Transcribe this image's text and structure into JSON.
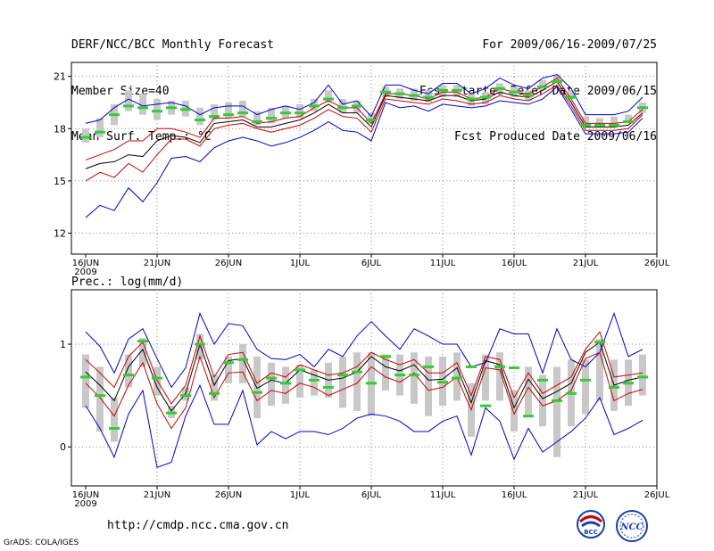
{
  "header": {
    "title": "DERF/NCC/BCC Monthly Forecast",
    "member_size": "Member Size=40",
    "variable": "Mean Surf. Temp.: °C",
    "forecast_range": "For 2009/06/16-2009/07/25",
    "started_date": "Fcst Started Refer Date 2009/06/15",
    "produced_date": "Fcst Produced Date 2009/06/16"
  },
  "footer": {
    "url": "http://cmdp.ncc.cma.gov.cn",
    "grads_credit": "GrADS: COLA/IGES",
    "logo_bcc_text": "BCC",
    "logo_ncc_text": "NCC"
  },
  "colors": {
    "ensemble_mean": "#000000",
    "spread": "#cc0000",
    "extremes": "#0000cc",
    "observed_box": "#c8c8c8",
    "marker": "#33cc33"
  },
  "chart_data": [
    {
      "type": "line",
      "title": "Mean Surf. Temp.: °C",
      "x_tick_labels": [
        "16JUN",
        "21JUN",
        "26JUN",
        "1JUL",
        "6JUL",
        "11JUL",
        "16JUL",
        "21JUL",
        "26JUL"
      ],
      "x_year_label": "2009",
      "ylim": [
        10.8,
        21.8
      ],
      "y_ticks": [
        12,
        15,
        18,
        21
      ],
      "grid": true,
      "days": 40,
      "series": [
        {
          "name": "max",
          "values": [
            12.9,
            13.6,
            13.3,
            14.6,
            13.8,
            14.9,
            16.3,
            16.4,
            16.1,
            16.9,
            17.3,
            17.5,
            17.3,
            17.0,
            17.2,
            17.5,
            17.9,
            18.4,
            17.9,
            17.8,
            17.3,
            19.5,
            19.2,
            19.3,
            19.0,
            19.4,
            19.3,
            19.2,
            19.3,
            19.6,
            19.5,
            19.4,
            19.7,
            20.4,
            19.1,
            17.7,
            17.7,
            17.7,
            17.8,
            18.6
          ]
        },
        {
          "name": "upper",
          "values": [
            15.0,
            15.5,
            15.2,
            16.0,
            15.5,
            16.5,
            17.4,
            17.4,
            17.0,
            18.0,
            18.2,
            18.3,
            18.0,
            17.8,
            18.0,
            18.2,
            18.6,
            19.1,
            18.7,
            18.6,
            17.8,
            19.7,
            19.6,
            19.5,
            19.4,
            19.7,
            19.6,
            19.4,
            19.5,
            19.9,
            19.7,
            19.6,
            20.0,
            20.5,
            19.3,
            17.9,
            17.9,
            17.9,
            18.0,
            18.8
          ]
        },
        {
          "name": "mean",
          "values": [
            15.7,
            16.0,
            16.1,
            16.5,
            16.4,
            17.3,
            17.6,
            17.5,
            17.2,
            18.3,
            18.4,
            18.5,
            18.1,
            18.1,
            18.3,
            18.5,
            18.9,
            19.4,
            18.9,
            18.9,
            18.1,
            19.9,
            19.8,
            19.7,
            19.6,
            19.9,
            19.9,
            19.6,
            19.7,
            20.1,
            19.9,
            19.8,
            20.2,
            20.7,
            19.5,
            18.1,
            18.1,
            18.1,
            18.2,
            18.9
          ]
        },
        {
          "name": "lower",
          "values": [
            16.2,
            16.5,
            16.8,
            17.3,
            17.3,
            18.0,
            18.0,
            17.8,
            17.5,
            18.6,
            18.6,
            18.7,
            18.3,
            18.4,
            18.6,
            18.7,
            19.2,
            19.6,
            19.2,
            19.2,
            18.3,
            20.0,
            20.0,
            19.9,
            19.7,
            20.1,
            20.1,
            19.7,
            19.8,
            20.3,
            20.1,
            20.0,
            20.4,
            20.9,
            19.7,
            18.3,
            18.3,
            18.3,
            18.4,
            19.1
          ]
        },
        {
          "name": "min",
          "values": [
            18.3,
            18.5,
            19.2,
            19.7,
            19.3,
            19.4,
            19.5,
            19.3,
            18.8,
            19.2,
            19.3,
            19.3,
            18.8,
            19.1,
            19.3,
            19.1,
            19.5,
            20.5,
            19.4,
            19.6,
            18.7,
            20.5,
            20.5,
            20.2,
            20.0,
            20.6,
            20.6,
            20.0,
            20.3,
            20.9,
            20.5,
            20.3,
            20.9,
            21.1,
            20.3,
            18.8,
            18.8,
            18.8,
            19.0,
            19.8
          ]
        },
        {
          "name": "observed_box_low",
          "values": [
            17.2,
            17.5,
            18.2,
            19.0,
            18.8,
            18.5,
            18.8,
            18.7,
            18.2,
            18.5,
            18.6,
            18.7,
            18.2,
            18.3,
            18.6,
            18.6,
            19.0,
            19.5,
            18.9,
            18.9,
            18.3,
            19.8,
            19.7,
            19.6,
            19.5,
            19.8,
            19.8,
            19.3,
            19.4,
            20.0,
            19.8,
            19.6,
            20.2,
            20.6,
            19.7,
            18.3,
            18.2,
            18.2,
            18.3,
            18.9
          ]
        },
        {
          "name": "observed_box_high",
          "values": [
            18.0,
            18.6,
            19.4,
            20.2,
            20.0,
            19.7,
            19.6,
            19.6,
            19.2,
            19.4,
            19.5,
            19.6,
            19.0,
            19.2,
            19.3,
            19.4,
            19.7,
            20.2,
            19.7,
            19.6,
            18.9,
            20.4,
            20.3,
            20.3,
            20.2,
            20.5,
            20.5,
            20.0,
            20.1,
            20.6,
            20.4,
            20.2,
            20.8,
            21.1,
            20.2,
            18.7,
            18.6,
            18.7,
            18.8,
            19.5
          ]
        },
        {
          "name": "marker",
          "values": [
            17.5,
            17.8,
            18.8,
            19.3,
            19.2,
            19.0,
            19.2,
            19.1,
            18.5,
            18.7,
            18.8,
            18.9,
            18.4,
            18.6,
            18.9,
            18.9,
            19.3,
            19.7,
            19.2,
            19.3,
            18.5,
            20.1,
            20.0,
            19.9,
            19.8,
            20.2,
            20.2,
            19.7,
            19.8,
            20.3,
            20.1,
            19.9,
            20.4,
            20.7,
            19.8,
            18.2,
            18.2,
            18.2,
            18.4,
            19.2
          ]
        }
      ]
    },
    {
      "type": "line",
      "title": "Prec.: log(mm/d)",
      "x_tick_labels": [
        "16JUN",
        "21JUN",
        "26JUN",
        "1JUL",
        "6JUL",
        "11JUL",
        "16JUL",
        "21JUL",
        "26JUL"
      ],
      "x_year_label": "2009",
      "ylim": [
        -0.38,
        1.53
      ],
      "y_ticks": [
        0,
        1
      ],
      "grid": true,
      "days": 40,
      "series": [
        {
          "name": "max",
          "values": [
            1.12,
            0.98,
            0.72,
            1.05,
            1.15,
            0.86,
            0.58,
            0.77,
            1.3,
            1.0,
            1.2,
            1.18,
            0.95,
            0.86,
            0.85,
            0.9,
            0.78,
            0.95,
            0.88,
            1.08,
            1.22,
            1.08,
            0.95,
            1.15,
            1.08,
            1.0,
            1.0,
            0.78,
            0.82,
            1.15,
            1.1,
            1.1,
            0.72,
            1.15,
            0.85,
            0.78,
            0.92,
            1.3,
            0.88,
            0.95
          ]
        },
        {
          "name": "upper",
          "values": [
            0.85,
            0.72,
            0.58,
            0.88,
            1.02,
            0.65,
            0.42,
            0.6,
            1.08,
            0.68,
            0.9,
            0.92,
            0.62,
            0.72,
            0.68,
            0.8,
            0.75,
            0.7,
            0.72,
            0.78,
            0.92,
            0.85,
            0.8,
            0.85,
            0.72,
            0.72,
            0.82,
            0.5,
            0.88,
            0.85,
            0.48,
            0.72,
            0.52,
            0.6,
            0.68,
            0.95,
            1.12,
            0.68,
            0.7,
            0.72
          ]
        },
        {
          "name": "mean",
          "values": [
            0.73,
            0.6,
            0.45,
            0.78,
            0.95,
            0.58,
            0.35,
            0.52,
            1.0,
            0.6,
            0.84,
            0.86,
            0.57,
            0.65,
            0.62,
            0.75,
            0.7,
            0.65,
            0.67,
            0.73,
            0.88,
            0.78,
            0.74,
            0.8,
            0.65,
            0.66,
            0.77,
            0.43,
            0.84,
            0.8,
            0.38,
            0.66,
            0.47,
            0.54,
            0.62,
            0.92,
            1.02,
            0.6,
            0.65,
            0.68
          ]
        },
        {
          "name": "lower",
          "values": [
            0.62,
            0.48,
            0.3,
            0.6,
            0.82,
            0.42,
            0.18,
            0.38,
            0.88,
            0.48,
            0.72,
            0.73,
            0.45,
            0.55,
            0.52,
            0.62,
            0.58,
            0.5,
            0.56,
            0.62,
            0.78,
            0.68,
            0.63,
            0.72,
            0.55,
            0.58,
            0.68,
            0.36,
            0.77,
            0.75,
            0.32,
            0.58,
            0.4,
            0.45,
            0.55,
            0.86,
            0.92,
            0.45,
            0.52,
            0.56
          ]
        },
        {
          "name": "min",
          "values": [
            0.4,
            0.18,
            -0.1,
            0.32,
            0.55,
            -0.2,
            -0.15,
            0.3,
            0.6,
            0.22,
            0.22,
            0.55,
            0.02,
            0.15,
            0.08,
            0.15,
            0.15,
            0.12,
            0.18,
            0.28,
            0.32,
            0.3,
            0.25,
            0.15,
            0.15,
            0.25,
            0.3,
            -0.08,
            0.38,
            0.25,
            -0.12,
            0.18,
            -0.05,
            0.05,
            0.15,
            0.28,
            0.48,
            0.12,
            0.18,
            0.26
          ]
        },
        {
          "name": "observed_box_low",
          "values": [
            0.38,
            0.15,
            0.05,
            0.58,
            0.78,
            0.5,
            0.28,
            0.45,
            0.85,
            0.45,
            0.62,
            0.62,
            0.28,
            0.4,
            0.42,
            0.48,
            0.5,
            0.48,
            0.38,
            0.35,
            0.3,
            0.55,
            0.5,
            0.42,
            0.3,
            0.4,
            0.45,
            0.1,
            0.45,
            0.45,
            0.15,
            0.3,
            0.2,
            -0.1,
            0.2,
            0.32,
            0.45,
            0.35,
            0.4,
            0.5
          ]
        },
        {
          "name": "observed_box_high",
          "values": [
            0.9,
            0.78,
            0.48,
            0.9,
            1.06,
            0.78,
            0.4,
            0.58,
            1.1,
            0.7,
            0.88,
            1.0,
            0.88,
            0.82,
            0.78,
            0.8,
            0.75,
            0.82,
            0.88,
            0.92,
            0.92,
            0.9,
            0.9,
            0.92,
            0.88,
            0.88,
            0.92,
            0.62,
            0.9,
            0.92,
            0.55,
            0.78,
            0.7,
            0.78,
            0.85,
            0.85,
            1.05,
            0.85,
            0.85,
            0.9
          ]
        },
        {
          "name": "marker",
          "values": [
            0.68,
            0.5,
            0.18,
            0.7,
            1.03,
            0.67,
            0.33,
            0.5,
            1.0,
            0.52,
            0.82,
            0.85,
            0.53,
            0.67,
            0.62,
            0.75,
            0.65,
            0.58,
            0.7,
            0.73,
            0.62,
            0.88,
            0.7,
            0.7,
            0.78,
            0.63,
            0.67,
            0.78,
            0.4,
            0.78,
            0.77,
            0.3,
            0.65,
            0.45,
            0.52,
            0.65,
            1.02,
            0.58,
            0.62,
            0.68
          ]
        }
      ]
    }
  ]
}
